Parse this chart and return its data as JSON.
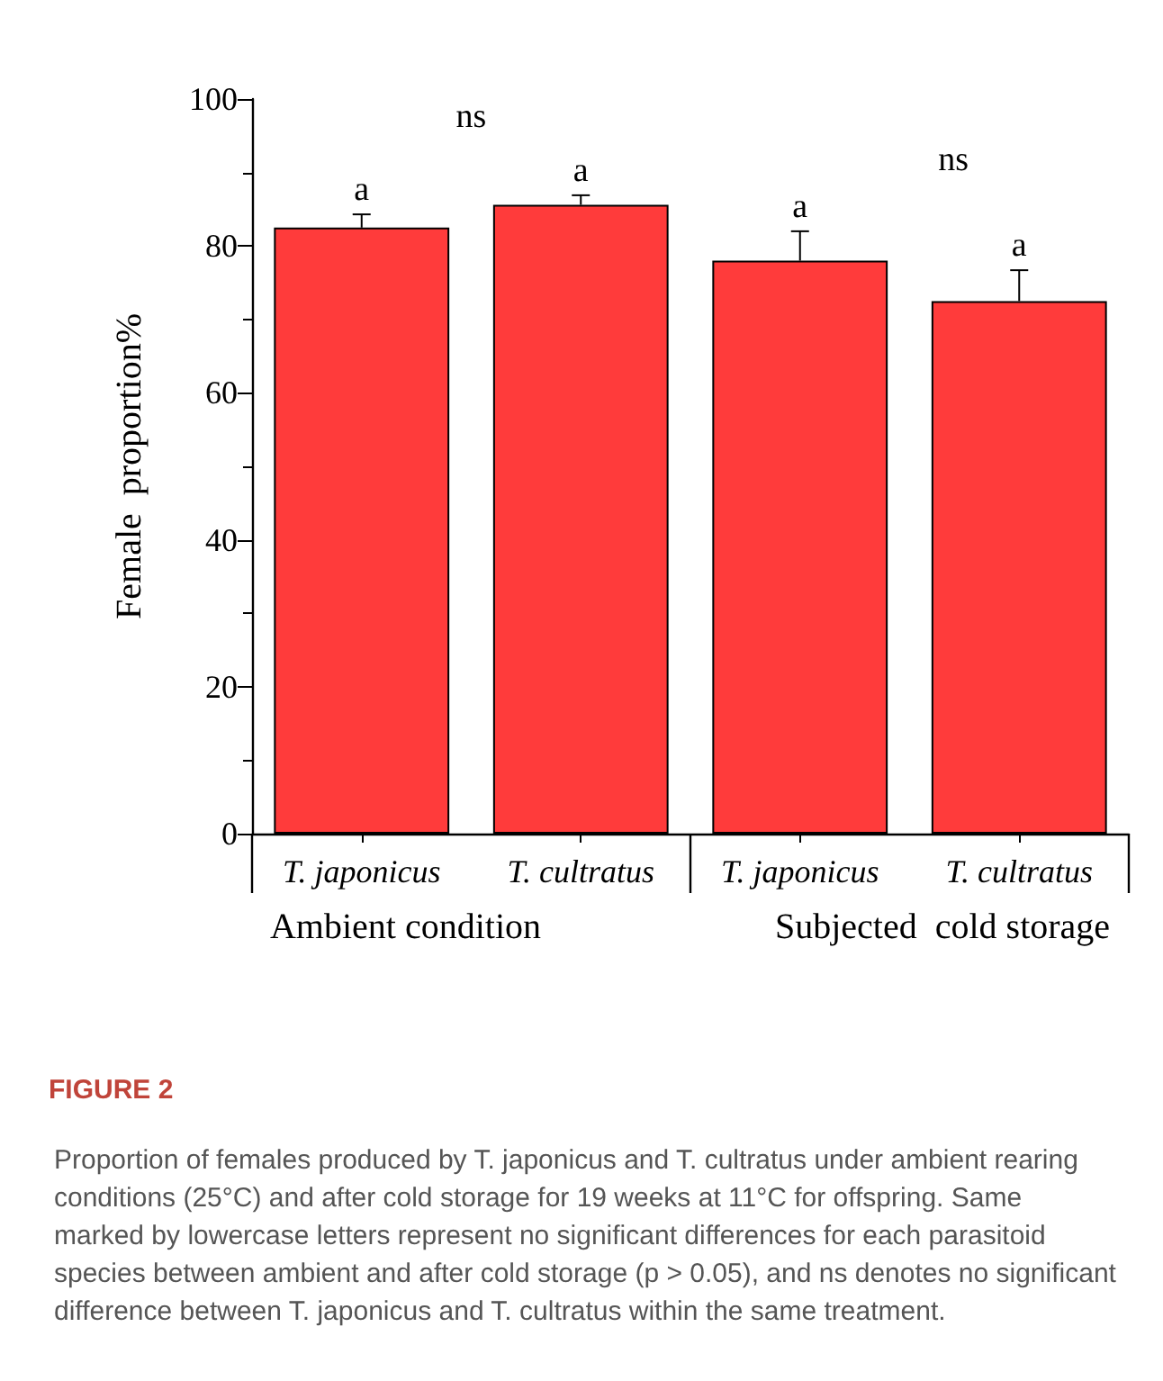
{
  "chart_data": {
    "type": "bar",
    "title": "FIGURE 2",
    "ylabel": "Female  proportion%",
    "categories": [
      "T. japonicus",
      "T. cultratus",
      "T. japonicus",
      "T. cultratus"
    ],
    "values": [
      82.5,
      85.6,
      78.0,
      72.5
    ],
    "color": "#ff3b3b",
    "errors": [
      [
        82.5,
        84.3
      ],
      [
        85.6,
        86.9
      ],
      [
        78.0,
        82.0
      ],
      [
        72.5,
        76.7
      ]
    ],
    "ylim": [
      0,
      100
    ],
    "yticks": [
      0,
      20,
      40,
      60,
      80,
      100
    ],
    "grid": false,
    "annotations": [
      "a",
      "a",
      "a",
      "a",
      "ns",
      "ns",
      "Ambient condition",
      "Subjected  cold storage",
      "Proportion of females produced by T. japonicus and T. cultratus under ambient rearing conditions (25°C) and after cold storage for 19 weeks at 11°C for offspring. Same marked by lowercase letters represent no significant differences for each parasitoid species between ambient and after cold storage (p > 0.05), and ns denotes no significant difference between T. japonicus and T. cultratus within the same treatment."
    ]
  }
}
